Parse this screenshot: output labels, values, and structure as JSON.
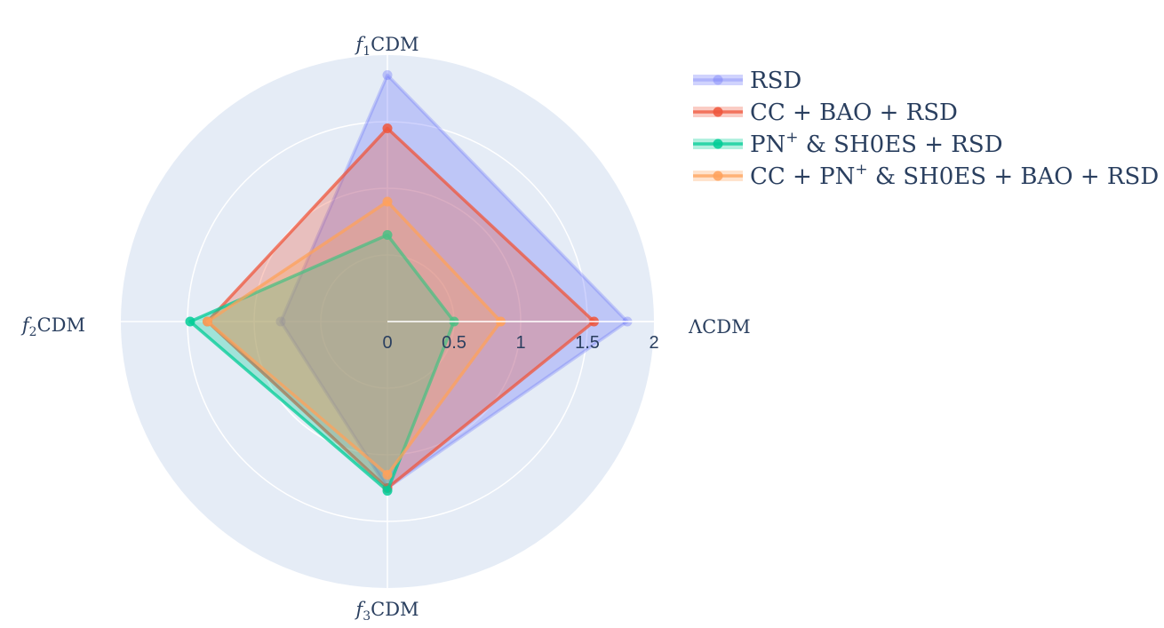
{
  "chart_data": {
    "type": "radar",
    "axes": [
      {
        "name": "ΛCDM",
        "letter": "",
        "sub": "",
        "rest": "ΛCDM"
      },
      {
        "name": "f1CDM",
        "letter": "f",
        "sub": "1",
        "rest": "CDM"
      },
      {
        "name": "f2CDM",
        "letter": "f",
        "sub": "2",
        "rest": "CDM"
      },
      {
        "name": "f3CDM",
        "letter": "f",
        "sub": "3",
        "rest": "CDM"
      }
    ],
    "radial_range": [
      0,
      2
    ],
    "radial_ticks": [
      "0",
      "0.5",
      "1",
      "1.5",
      "2"
    ],
    "grid": true,
    "legend_position": "top-right",
    "series": [
      {
        "name": "RSD",
        "parts": [
          "RSD"
        ],
        "color": "#636efa",
        "values": [
          1.8,
          1.85,
          0.8,
          1.25
        ]
      },
      {
        "name": "CC + BAO + RSD",
        "parts": [
          "CC + BAO + RSD"
        ],
        "color": "#ef553b",
        "values": [
          1.55,
          1.45,
          1.35,
          1.25
        ]
      },
      {
        "name": "PN+ & SH0ES + RSD",
        "parts": [
          "PN",
          "+",
          " & SH0ES + RSD"
        ],
        "color": "#00cc96",
        "values": [
          0.5,
          0.65,
          1.48,
          1.27
        ]
      },
      {
        "name": "CC + PN+ & SH0ES + BAO + RSD",
        "parts": [
          "CC + PN",
          "+",
          " & SH0ES + BAO + RSD"
        ],
        "color": "#ffa15a",
        "values": [
          0.85,
          0.9,
          1.35,
          1.15
        ]
      }
    ]
  }
}
